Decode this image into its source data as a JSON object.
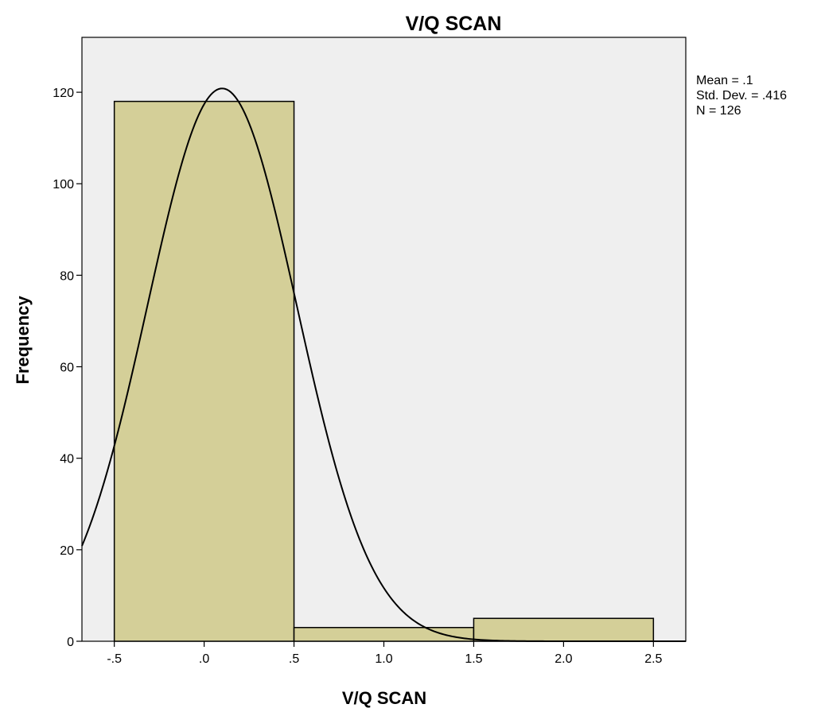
{
  "chart_data": {
    "type": "bar",
    "title": "V/Q SCAN",
    "xlabel": "V/Q SCAN",
    "ylabel": "Frequency",
    "bins": [
      {
        "x0": -0.5,
        "x1": 0.5,
        "value": 118
      },
      {
        "x0": 0.5,
        "x1": 1.5,
        "value": 3
      },
      {
        "x0": 1.5,
        "x1": 2.5,
        "value": 5
      }
    ],
    "xlim": [
      -0.68,
      2.68
    ],
    "ylim": [
      0,
      132
    ],
    "x_ticks": [
      -0.5,
      0.0,
      0.5,
      1.0,
      1.5,
      2.0,
      2.5
    ],
    "x_tick_labels": [
      "-.5",
      ".0",
      ".5",
      "1.0",
      "1.5",
      "2.0",
      "2.5"
    ],
    "y_ticks": [
      0,
      20,
      40,
      60,
      80,
      100,
      120
    ],
    "y_tick_labels": [
      "0",
      "20",
      "40",
      "60",
      "80",
      "100",
      "120"
    ],
    "normal_curve": {
      "mean": 0.1,
      "std_dev": 0.416,
      "n": 126,
      "bin_width": 1.0
    },
    "stats": [
      "Mean = .1",
      "Std. Dev. = .416",
      "N = 126"
    ],
    "colors": {
      "bar_fill": "#d4cf98",
      "bar_stroke": "#000000",
      "plot_bg": "#efefef",
      "curve": "#000000"
    },
    "grid": false,
    "legend": "right"
  }
}
